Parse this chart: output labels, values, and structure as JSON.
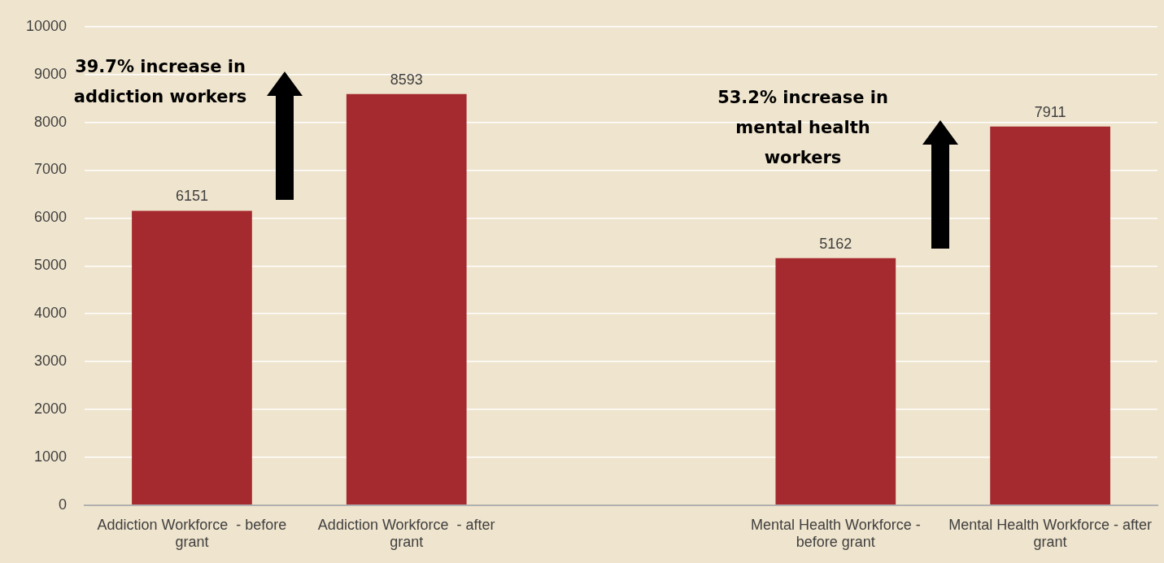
{
  "chart_data": {
    "type": "bar",
    "categories": [
      "Addiction Workforce  - before grant",
      "Addiction Workforce  - after grant",
      null,
      "Mental Health Workforce - before grant",
      "Mental Health Workforce - after grant"
    ],
    "values": [
      6151,
      8593,
      null,
      5162,
      7911
    ],
    "color": "#a52a2f",
    "ylim": [
      0,
      10000
    ],
    "yticks": [
      0,
      1000,
      2000,
      3000,
      4000,
      5000,
      6000,
      7000,
      8000,
      9000,
      10000
    ],
    "grid": "y",
    "data_labels": true,
    "legend": false,
    "annotations": [
      "39.7% increase in addiction workers",
      "53.2% increase in mental health workers"
    ]
  }
}
